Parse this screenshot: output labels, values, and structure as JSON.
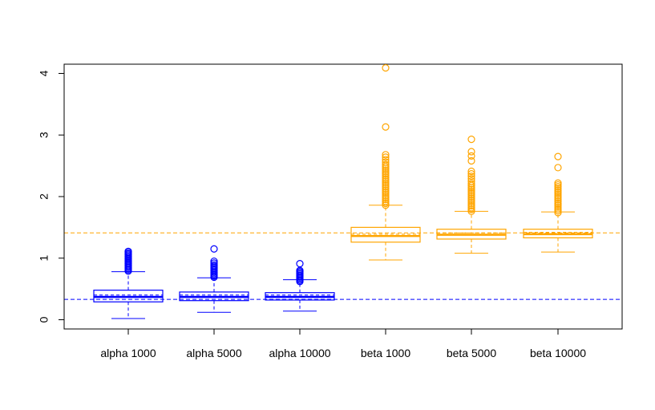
{
  "chart_data": {
    "type": "boxplot",
    "title": "",
    "xlabel": "",
    "ylabel": "",
    "ylim": [
      -0.15,
      4.15
    ],
    "y_ticks": [
      0,
      1,
      2,
      3,
      4
    ],
    "categories": [
      "alpha 1000",
      "alpha 5000",
      "alpha 10000",
      "beta 1000",
      "beta 5000",
      "beta 10000"
    ],
    "boxes": [
      {
        "label": "alpha 1000",
        "color": "#0000FF",
        "whisker_low": 0.02,
        "q1": 0.29,
        "median": 0.37,
        "q3": 0.48,
        "whisker_high": 0.78,
        "outliers": [
          0.79,
          0.81,
          0.83,
          0.85,
          0.87,
          0.89,
          0.91,
          0.93,
          0.95,
          0.97,
          0.99,
          1.01,
          1.03,
          1.05,
          1.07,
          1.09,
          1.11
        ]
      },
      {
        "label": "alpha 5000",
        "color": "#0000FF",
        "whisker_low": 0.12,
        "q1": 0.31,
        "median": 0.37,
        "q3": 0.45,
        "whisker_high": 0.68,
        "outliers": [
          0.69,
          0.71,
          0.73,
          0.75,
          0.77,
          0.79,
          0.81,
          0.83,
          0.85,
          0.87,
          0.89,
          0.92,
          0.95,
          1.15
        ]
      },
      {
        "label": "alpha 10000",
        "color": "#0000FF",
        "whisker_low": 0.14,
        "q1": 0.32,
        "median": 0.37,
        "q3": 0.44,
        "whisker_high": 0.65,
        "outliers": [
          0.62,
          0.64,
          0.66,
          0.68,
          0.7,
          0.72,
          0.74,
          0.76,
          0.78,
          0.8,
          0.91
        ]
      },
      {
        "label": "beta 1000",
        "color": "#FFA500",
        "whisker_low": 0.97,
        "q1": 1.26,
        "median": 1.36,
        "q3": 1.5,
        "whisker_high": 1.86,
        "outliers": [
          1.86,
          1.89,
          1.92,
          1.95,
          1.98,
          2.01,
          2.04,
          2.07,
          2.1,
          2.13,
          2.16,
          2.19,
          2.22,
          2.25,
          2.28,
          2.31,
          2.34,
          2.37,
          2.4,
          2.43,
          2.46,
          2.49,
          2.52,
          2.56,
          2.6,
          2.64,
          2.68,
          3.13,
          4.09
        ]
      },
      {
        "label": "beta 5000",
        "color": "#FFA500",
        "whisker_low": 1.08,
        "q1": 1.31,
        "median": 1.38,
        "q3": 1.47,
        "whisker_high": 1.76,
        "outliers": [
          1.76,
          1.79,
          1.82,
          1.85,
          1.88,
          1.91,
          1.94,
          1.97,
          2.0,
          2.03,
          2.06,
          2.09,
          2.12,
          2.15,
          2.18,
          2.21,
          2.25,
          2.29,
          2.33,
          2.37,
          2.41,
          2.58,
          2.66,
          2.73,
          2.93
        ]
      },
      {
        "label": "beta 10000",
        "color": "#FFA500",
        "whisker_low": 1.1,
        "q1": 1.33,
        "median": 1.39,
        "q3": 1.47,
        "whisker_high": 1.75,
        "outliers": [
          1.74,
          1.77,
          1.8,
          1.83,
          1.86,
          1.89,
          1.92,
          1.95,
          1.98,
          2.01,
          2.04,
          2.07,
          2.1,
          2.13,
          2.16,
          2.19,
          2.22,
          2.47,
          2.65
        ]
      }
    ],
    "reference_lines": [
      {
        "name": "alpha-true-value",
        "value": 0.33,
        "color": "#0000FF",
        "style": "dashed"
      },
      {
        "name": "beta-true-value",
        "value": 1.41,
        "color": "#FFA500",
        "style": "dashed"
      }
    ],
    "mean_lines": "dashed line inside each box",
    "grid": false,
    "legend": "none"
  }
}
